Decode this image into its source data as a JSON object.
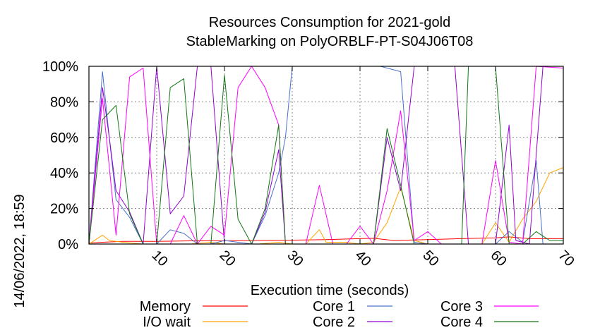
{
  "chart_data": {
    "type": "line",
    "title": "Resources Consumption for 2021-gold",
    "subtitle": "StableMarking on PolyORBLF-PT-S04J06T08",
    "xlabel": "Execution time (seconds)",
    "ylabel": "",
    "timestamp": "14/06/2022, 18:59",
    "xlim": [
      0,
      70
    ],
    "ylim": [
      0,
      100
    ],
    "x_ticks": [
      10,
      20,
      30,
      40,
      50,
      60,
      70
    ],
    "y_ticks": [
      0,
      20,
      40,
      60,
      80,
      100
    ],
    "y_tick_suffix": "%",
    "grid": true,
    "legend_position": "bottom",
    "series": [
      {
        "name": "Memory",
        "color": "#ff0000",
        "points": [
          [
            0,
            0.5
          ],
          [
            2,
            1
          ],
          [
            5,
            1.5
          ],
          [
            10,
            1.5
          ],
          [
            15,
            1.8
          ],
          [
            20,
            1.8
          ],
          [
            25,
            2
          ],
          [
            30,
            2.2
          ],
          [
            35,
            2.5
          ],
          [
            40,
            3
          ],
          [
            42,
            3.2
          ],
          [
            45,
            2
          ],
          [
            50,
            2.5
          ],
          [
            55,
            3
          ],
          [
            60,
            3.5
          ],
          [
            62,
            4
          ],
          [
            65,
            3
          ],
          [
            70,
            3
          ]
        ]
      },
      {
        "name": "I/O wait",
        "color": "#ffa500",
        "points": [
          [
            0,
            0
          ],
          [
            2,
            5
          ],
          [
            3,
            2
          ],
          [
            5,
            1
          ],
          [
            8,
            0
          ],
          [
            10,
            0
          ],
          [
            12,
            0
          ],
          [
            15,
            0
          ],
          [
            18,
            1
          ],
          [
            20,
            0
          ],
          [
            25,
            0
          ],
          [
            28,
            1
          ],
          [
            30,
            0
          ],
          [
            32,
            0
          ],
          [
            34,
            8
          ],
          [
            35,
            1
          ],
          [
            38,
            1
          ],
          [
            40,
            0
          ],
          [
            42,
            1
          ],
          [
            44,
            12
          ],
          [
            46,
            32
          ],
          [
            48,
            2
          ],
          [
            50,
            0
          ],
          [
            55,
            0
          ],
          [
            58,
            0
          ],
          [
            60,
            12
          ],
          [
            62,
            1
          ],
          [
            64,
            14
          ],
          [
            66,
            24
          ],
          [
            68,
            40
          ],
          [
            70,
            43
          ]
        ]
      },
      {
        "name": "Core 1",
        "color": "#4a70c9",
        "points": [
          [
            0,
            0
          ],
          [
            2,
            97
          ],
          [
            3,
            60
          ],
          [
            4,
            25
          ],
          [
            6,
            15
          ],
          [
            8,
            0
          ],
          [
            10,
            0
          ],
          [
            12,
            8
          ],
          [
            14,
            6
          ],
          [
            16,
            0
          ],
          [
            18,
            0
          ],
          [
            20,
            2
          ],
          [
            22,
            1
          ],
          [
            24,
            0
          ],
          [
            26,
            16
          ],
          [
            28,
            40
          ],
          [
            29,
            60
          ],
          [
            30,
            100
          ],
          [
            35,
            100
          ],
          [
            40,
            100
          ],
          [
            43,
            100
          ],
          [
            45,
            98
          ],
          [
            46,
            97
          ],
          [
            48,
            1
          ],
          [
            50,
            0
          ],
          [
            55,
            0
          ],
          [
            60,
            0
          ],
          [
            62,
            7
          ],
          [
            64,
            1
          ],
          [
            66,
            47
          ],
          [
            67,
            0
          ],
          [
            70,
            0
          ]
        ]
      },
      {
        "name": "Core 2",
        "color": "#9400d3",
        "points": [
          [
            0,
            0
          ],
          [
            2,
            88
          ],
          [
            3,
            60
          ],
          [
            4,
            30
          ],
          [
            6,
            18
          ],
          [
            8,
            0
          ],
          [
            10,
            100
          ],
          [
            12,
            17
          ],
          [
            14,
            27
          ],
          [
            16,
            100
          ],
          [
            18,
            100
          ],
          [
            20,
            0
          ],
          [
            22,
            0
          ],
          [
            24,
            0
          ],
          [
            26,
            18
          ],
          [
            28,
            53
          ],
          [
            29,
            0
          ],
          [
            30,
            0
          ],
          [
            35,
            0
          ],
          [
            40,
            0
          ],
          [
            42,
            0
          ],
          [
            44,
            60
          ],
          [
            46,
            30
          ],
          [
            48,
            100
          ],
          [
            50,
            100
          ],
          [
            52,
            100
          ],
          [
            54,
            100
          ],
          [
            56,
            0
          ],
          [
            58,
            0
          ],
          [
            60,
            0
          ],
          [
            62,
            67
          ],
          [
            63,
            2
          ],
          [
            65,
            0
          ],
          [
            67,
            100
          ],
          [
            70,
            100
          ]
        ]
      },
      {
        "name": "Core 3",
        "color": "#ff00ff",
        "points": [
          [
            0,
            0
          ],
          [
            2,
            82
          ],
          [
            4,
            5
          ],
          [
            6,
            94
          ],
          [
            8,
            99
          ],
          [
            10,
            0
          ],
          [
            12,
            0
          ],
          [
            14,
            16
          ],
          [
            16,
            0
          ],
          [
            18,
            10
          ],
          [
            20,
            5
          ],
          [
            22,
            88
          ],
          [
            24,
            100
          ],
          [
            26,
            88
          ],
          [
            28,
            67
          ],
          [
            29,
            0
          ],
          [
            30,
            0
          ],
          [
            32,
            0
          ],
          [
            34,
            33
          ],
          [
            36,
            0
          ],
          [
            38,
            0
          ],
          [
            40,
            10
          ],
          [
            42,
            0
          ],
          [
            44,
            30
          ],
          [
            46,
            75
          ],
          [
            48,
            2
          ],
          [
            50,
            7
          ],
          [
            52,
            0
          ],
          [
            55,
            0
          ],
          [
            58,
            0
          ],
          [
            60,
            47
          ],
          [
            62,
            1
          ],
          [
            64,
            0
          ],
          [
            66,
            100
          ],
          [
            70,
            99
          ]
        ]
      },
      {
        "name": "Core 4",
        "color": "#117711",
        "points": [
          [
            0,
            0
          ],
          [
            2,
            70
          ],
          [
            4,
            78
          ],
          [
            6,
            17
          ],
          [
            8,
            0
          ],
          [
            10,
            0
          ],
          [
            12,
            88
          ],
          [
            14,
            93
          ],
          [
            16,
            0
          ],
          [
            18,
            0
          ],
          [
            20,
            95
          ],
          [
            22,
            14
          ],
          [
            24,
            0
          ],
          [
            26,
            20
          ],
          [
            28,
            67
          ],
          [
            29,
            0
          ],
          [
            30,
            0
          ],
          [
            35,
            0
          ],
          [
            40,
            0
          ],
          [
            42,
            0
          ],
          [
            44,
            65
          ],
          [
            46,
            33
          ],
          [
            48,
            0
          ],
          [
            50,
            0
          ],
          [
            55,
            0
          ],
          [
            56,
            100
          ],
          [
            58,
            100
          ],
          [
            60,
            100
          ],
          [
            62,
            0
          ],
          [
            64,
            0
          ],
          [
            66,
            7
          ],
          [
            68,
            2
          ],
          [
            70,
            2
          ]
        ]
      }
    ]
  }
}
